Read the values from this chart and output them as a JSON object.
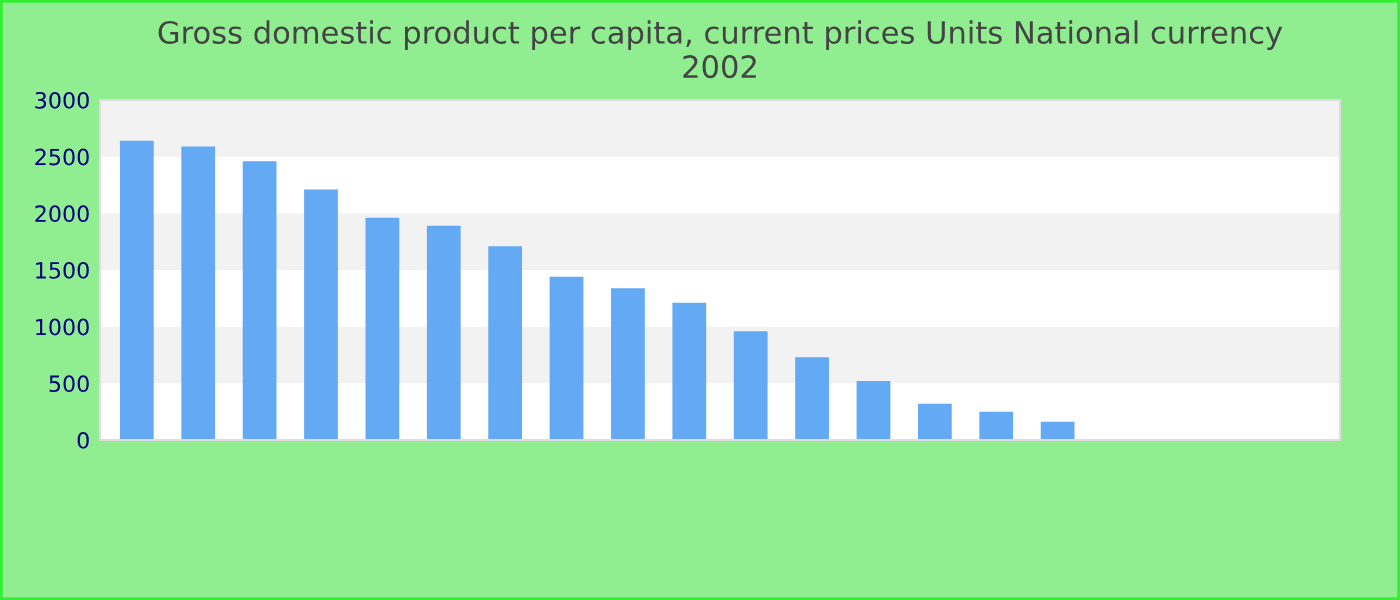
{
  "chart_data": {
    "type": "bar",
    "title": "Gross domestic product per capita, current prices Units National currency\n2002",
    "categories": [
      null,
      null,
      null,
      null,
      null,
      null,
      null,
      null,
      null,
      null,
      null,
      null,
      null,
      null,
      null,
      null,
      null,
      null,
      null,
      null
    ],
    "values": [
      2640,
      2590,
      2460,
      2210,
      1960,
      1890,
      1710,
      1440,
      1340,
      1210,
      960,
      730,
      520,
      320,
      250,
      160,
      null,
      null,
      null,
      null
    ],
    "color": "#63a9f4",
    "ylim": [
      0,
      3000
    ],
    "yticks": [
      0,
      500,
      1000,
      1500,
      2000,
      2500,
      3000
    ]
  }
}
